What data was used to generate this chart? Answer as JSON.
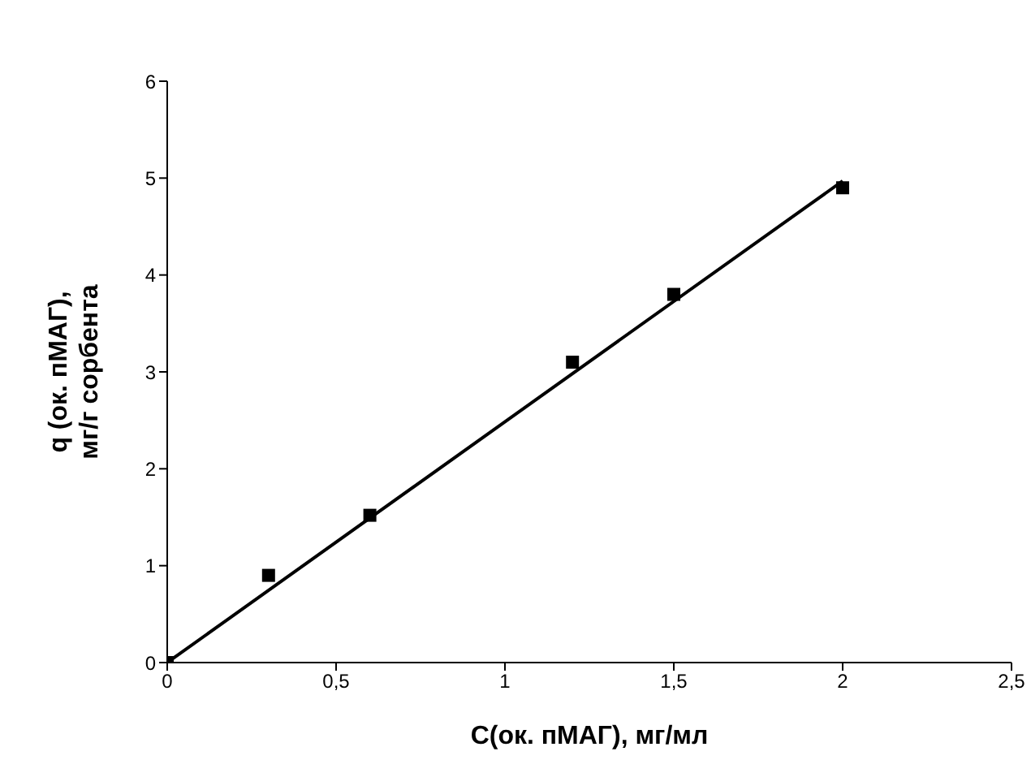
{
  "chart_data": {
    "type": "scatter",
    "xlabel": "С(ок. пМАГ), мг/мл",
    "ylabel": "q (ок. пМАГ),\nмг/г сорбента",
    "xlim": [
      0,
      2.5
    ],
    "xticks": [
      0,
      {
        "value": 0.5,
        "label": "0,5"
      },
      1,
      {
        "value": 1.5,
        "label": "1,5"
      },
      2,
      {
        "value": 2.5,
        "label": "2,5"
      }
    ],
    "ylim": [
      0,
      6
    ],
    "yticks": [
      0,
      1,
      2,
      3,
      4,
      5,
      6
    ],
    "grid": false,
    "series": [
      {
        "marker": "square",
        "color": "#000000",
        "x": [
          0,
          0.3,
          0.6,
          1.2,
          1.5,
          2
        ],
        "values": [
          0,
          0.9,
          1.52,
          3.1,
          3.8,
          4.9
        ]
      },
      {
        "type": "line",
        "marker": "none",
        "color": "#000000",
        "x": [
          0,
          2
        ],
        "values": [
          0,
          4.97
        ]
      }
    ]
  }
}
